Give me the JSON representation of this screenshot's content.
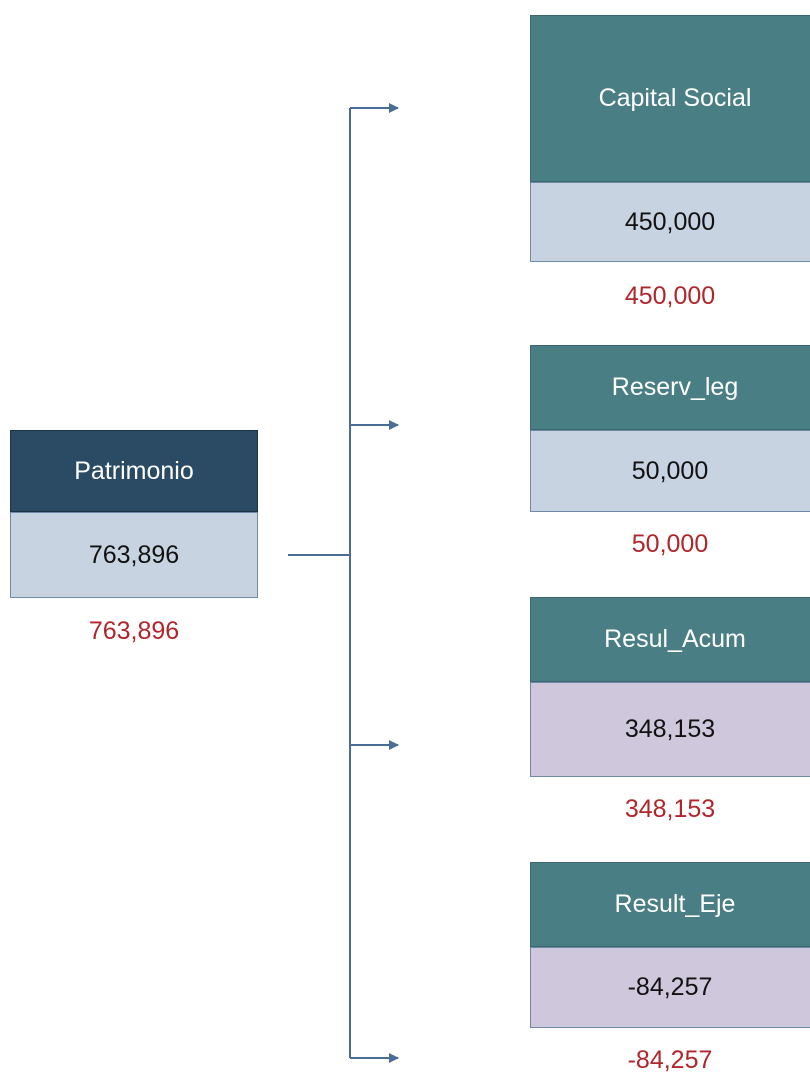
{
  "root": {
    "label": "Patrimonio",
    "value": "763,896",
    "total": "763,896"
  },
  "children": [
    {
      "label": "Capital Social",
      "value": "450,000",
      "total": "450,000"
    },
    {
      "label": "Reserv_leg",
      "value": "50,000",
      "total": "50,000"
    },
    {
      "label": "Resul_Acum",
      "value": "348,153",
      "total": "348,153"
    },
    {
      "label": "Result_Eje",
      "value": "-84,257",
      "total": "-84,257"
    }
  ]
}
